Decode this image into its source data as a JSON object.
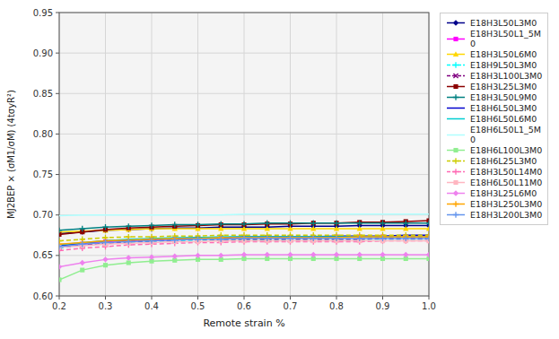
{
  "chart_data": {
    "type": "line",
    "x_label": "Remote strain %",
    "y_label": "MJ2BEP × (σM1/σM)  (4tσyR²)",
    "x": [
      0.2,
      0.25,
      0.3,
      0.35,
      0.4,
      0.45,
      0.5,
      0.55,
      0.6,
      0.65,
      0.7,
      0.75,
      0.8,
      0.85,
      0.9,
      0.95,
      1.0
    ],
    "xlim": [
      0.2,
      1.0
    ],
    "ylim": [
      0.6,
      0.95
    ],
    "xticks": [
      0.2,
      0.3,
      0.4,
      0.5,
      0.6,
      0.7,
      0.8,
      0.9,
      {
        "value": 1.0,
        "label": "1.0"
      }
    ],
    "yticks": [
      {
        "value": 0.6,
        "label": "0.60"
      },
      0.65,
      {
        "value": 0.7,
        "label": "0.70"
      },
      0.75,
      {
        "value": 0.8,
        "label": "0.80"
      },
      0.85,
      {
        "value": 0.9,
        "label": "0.90"
      },
      0.95
    ],
    "grid": true,
    "legend": "right",
    "series": [
      {
        "name": "E18H3L50L3M0",
        "color": "#00008B",
        "line_style": "solid",
        "marker": "diamond",
        "values": [
          0.677,
          0.679,
          0.681,
          0.682,
          0.683,
          0.684,
          0.684,
          0.685,
          0.685,
          0.685,
          0.686,
          0.686,
          0.686,
          0.687,
          0.687,
          0.687,
          0.687
        ]
      },
      {
        "name": "E18H3L50L1_5M\n0",
        "color": "#FF00FF",
        "line_style": "solid",
        "marker": "square",
        "values": [
          0.661,
          0.664,
          0.667,
          0.668,
          0.669,
          0.67,
          0.671,
          0.671,
          0.672,
          0.672,
          0.672,
          0.672,
          0.673,
          0.673,
          0.673,
          0.673,
          0.673
        ]
      },
      {
        "name": "E18H3L50L6M0",
        "color": "#FFD700",
        "line_style": "solid",
        "marker": "triangle",
        "values": [
          0.679,
          0.68,
          0.681,
          0.682,
          0.683,
          0.683,
          0.683,
          0.683,
          0.683,
          0.683,
          0.683,
          0.683,
          0.683,
          0.683,
          0.683,
          0.683,
          0.683
        ]
      },
      {
        "name": "E18H9L50L3M0",
        "color": "#00FFFF",
        "line_style": "dashed",
        "marker": "plus",
        "values": [
          0.659,
          0.663,
          0.665,
          0.666,
          0.667,
          0.668,
          0.669,
          0.669,
          0.669,
          0.669,
          0.67,
          0.67,
          0.67,
          0.67,
          0.67,
          0.67,
          0.67
        ]
      },
      {
        "name": "E18H3L100L3M0",
        "color": "#800080",
        "line_style": "dashed",
        "marker": "x",
        "values": [
          0.66,
          0.663,
          0.665,
          0.667,
          0.668,
          0.669,
          0.67,
          0.67,
          0.67,
          0.67,
          0.67,
          0.67,
          0.67,
          0.67,
          0.671,
          0.671,
          0.671
        ]
      },
      {
        "name": "E18H3L25L3M0",
        "color": "#8B0000",
        "line_style": "solid",
        "marker": "square",
        "values": [
          0.676,
          0.679,
          0.682,
          0.684,
          0.685,
          0.686,
          0.687,
          0.688,
          0.688,
          0.689,
          0.689,
          0.69,
          0.69,
          0.691,
          0.691,
          0.692,
          0.693
        ]
      },
      {
        "name": "E18H3L50L9M0",
        "color": "#008080",
        "line_style": "solid",
        "marker": "plus",
        "values": [
          0.681,
          0.683,
          0.685,
          0.686,
          0.687,
          0.688,
          0.688,
          0.689,
          0.689,
          0.69,
          0.69,
          0.69,
          0.69,
          0.69,
          0.69,
          0.69,
          0.69
        ]
      },
      {
        "name": "E18H6L50L3M0",
        "color": "#0000CD",
        "line_style": "solid",
        "marker": "none",
        "values": [
          0.662,
          0.665,
          0.668,
          0.669,
          0.67,
          0.671,
          0.672,
          0.672,
          0.673,
          0.673,
          0.673,
          0.673,
          0.674,
          0.674,
          0.674,
          0.675,
          0.675
        ]
      },
      {
        "name": "E18H6L50L6M0",
        "color": "#00CED1",
        "line_style": "solid",
        "marker": "none",
        "values": [
          0.663,
          0.666,
          0.668,
          0.67,
          0.671,
          0.672,
          0.672,
          0.673,
          0.673,
          0.673,
          0.673,
          0.673,
          0.673,
          0.673,
          0.673,
          0.673,
          0.673
        ]
      },
      {
        "name": "E18H6L50L1_5M\n0",
        "color": "#AFFFFF",
        "line_style": "solid",
        "marker": "none",
        "values": [
          0.699,
          0.7,
          0.7,
          0.7,
          0.7,
          0.7,
          0.7,
          0.7,
          0.701,
          0.701,
          0.701,
          0.701,
          0.701,
          0.701,
          0.701,
          0.701,
          0.701
        ]
      },
      {
        "name": "E18H6L100L3M0",
        "color": "#90EE90",
        "line_style": "solid",
        "marker": "square",
        "values": [
          0.62,
          0.632,
          0.638,
          0.641,
          0.643,
          0.644,
          0.645,
          0.645,
          0.646,
          0.646,
          0.646,
          0.646,
          0.646,
          0.646,
          0.646,
          0.646,
          0.646
        ]
      },
      {
        "name": "E18H6L25L3M0",
        "color": "#CCCC00",
        "line_style": "dashed",
        "marker": "plus",
        "values": [
          0.668,
          0.67,
          0.672,
          0.673,
          0.673,
          0.674,
          0.674,
          0.675,
          0.675,
          0.675,
          0.675,
          0.675,
          0.675,
          0.675,
          0.675,
          0.675,
          0.675
        ]
      },
      {
        "name": "E18H3L50L14M0",
        "color": "#FF69B4",
        "line_style": "dashed",
        "marker": "plus",
        "values": [
          0.656,
          0.659,
          0.661,
          0.663,
          0.664,
          0.665,
          0.666,
          0.666,
          0.667,
          0.667,
          0.667,
          0.667,
          0.667,
          0.667,
          0.668,
          0.668,
          0.668
        ]
      },
      {
        "name": "E18H6L50L11M0",
        "color": "#FFB6C1",
        "line_style": "solid",
        "marker": "square",
        "values": [
          0.66,
          0.662,
          0.664,
          0.665,
          0.666,
          0.667,
          0.667,
          0.668,
          0.668,
          0.668,
          0.668,
          0.668,
          0.668,
          0.668,
          0.668,
          0.668,
          0.668
        ]
      },
      {
        "name": "E18H3L25L6M0",
        "color": "#EE82EE",
        "line_style": "solid",
        "marker": "diamond",
        "values": [
          0.636,
          0.641,
          0.645,
          0.647,
          0.648,
          0.649,
          0.65,
          0.65,
          0.651,
          0.651,
          0.651,
          0.651,
          0.651,
          0.651,
          0.651,
          0.651,
          0.651
        ]
      },
      {
        "name": "E18H3L250L3M0",
        "color": "#FFA500",
        "line_style": "solid",
        "marker": "plus",
        "values": [
          0.664,
          0.666,
          0.668,
          0.669,
          0.67,
          0.671,
          0.671,
          0.672,
          0.672,
          0.672,
          0.672,
          0.672,
          0.672,
          0.673,
          0.673,
          0.673,
          0.673
        ]
      },
      {
        "name": "E18H3L200L3M0",
        "color": "#6495ED",
        "line_style": "solid",
        "marker": "plus",
        "values": [
          0.661,
          0.664,
          0.666,
          0.667,
          0.668,
          0.669,
          0.67,
          0.67,
          0.671,
          0.671,
          0.671,
          0.671,
          0.671,
          0.671,
          0.671,
          0.671,
          0.671
        ]
      }
    ]
  }
}
